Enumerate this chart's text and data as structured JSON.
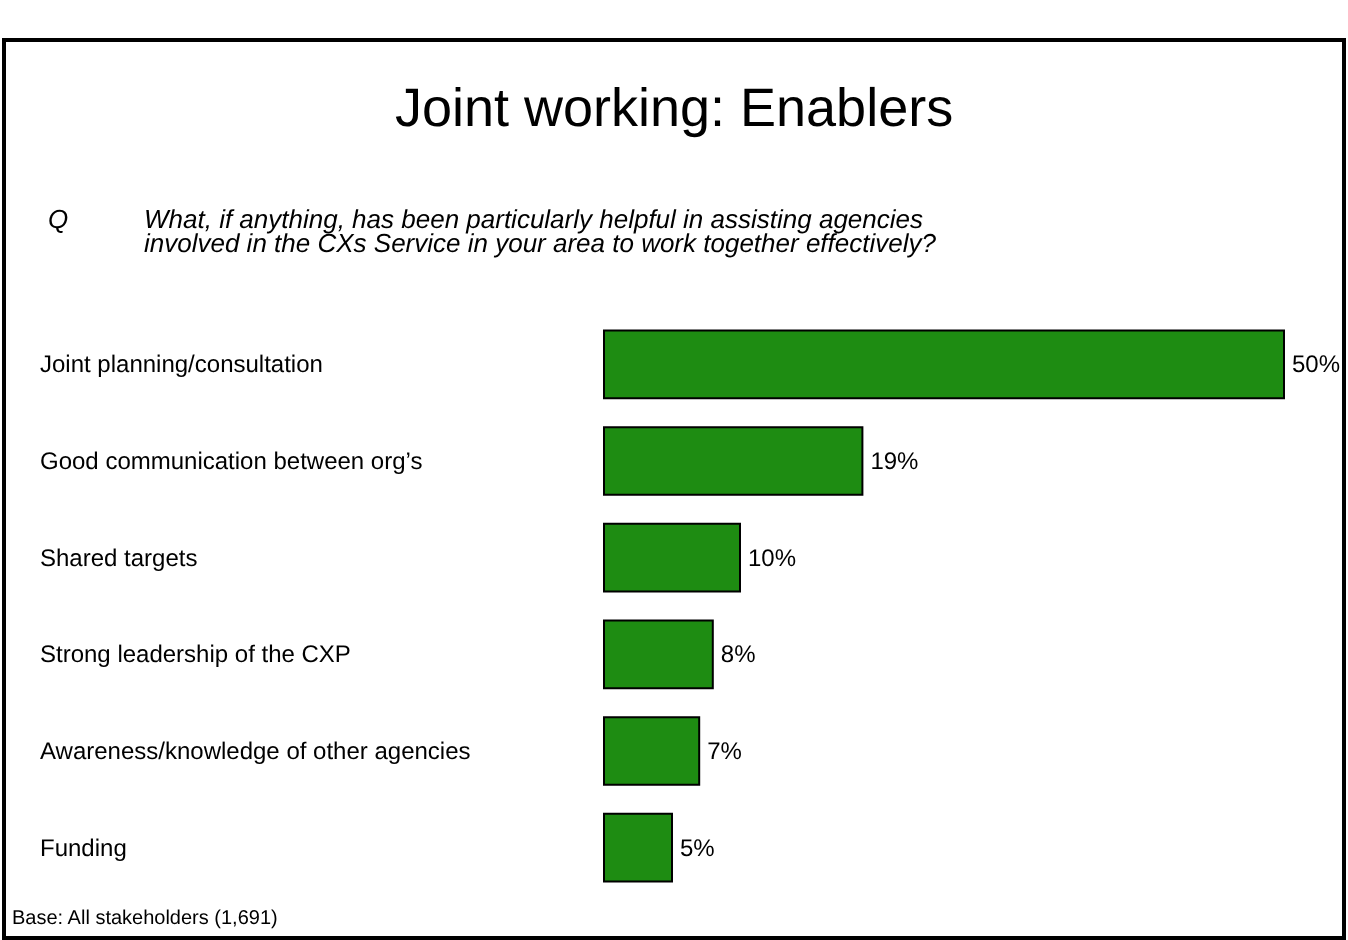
{
  "chart_data": {
    "type": "bar",
    "orientation": "horizontal",
    "title": "Joint working:  Enablers",
    "subtitle": "Q What, if anything, has been particularly helpful in assisting agencies involved in the CXs Service in your area to work together effectively?",
    "categories": [
      "Joint planning/consultation",
      "Good communication between org’s",
      "Shared targets",
      "Strong leadership of the CXP",
      "Awareness/knowledge of other agencies",
      "Funding"
    ],
    "values": [
      50,
      19,
      10,
      8,
      7,
      5
    ],
    "value_labels": [
      "50%",
      "19%",
      "10%",
      "8%",
      "7%",
      "5%"
    ],
    "color": "#1e8c12",
    "annotations": [
      "Base: All stakeholders (1,691)"
    ]
  }
}
